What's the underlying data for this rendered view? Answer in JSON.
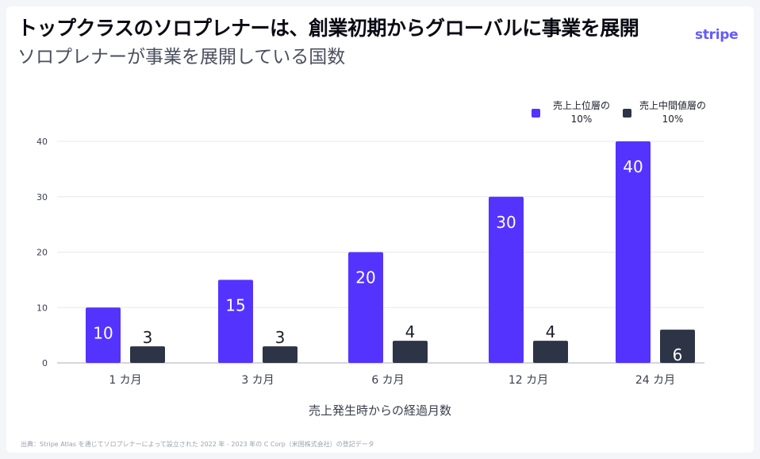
{
  "header": {
    "title": "トップクラスのソロプレナーは、創業初期からグローバルに事業を展開",
    "subtitle": "ソロプレナーが事業を展開している国数",
    "logo": "stripe"
  },
  "footer": {
    "source": "出典：Stripe Atlas を通じてソロプレナーによって設立された 2022 年 - 2023 年の C Corp（米国株式会社）の登記データ"
  },
  "colors": {
    "top10": "#5533ff",
    "mid10": "#2d3446",
    "grid": "#e6e8ee",
    "axis": "#a9aebb"
  },
  "chart_data": {
    "type": "bar",
    "title": "ソロプレナーが事業を展開している国数",
    "xlabel": "売上発生時からの経過月数",
    "ylabel": "",
    "categories": [
      "1 カ月",
      "3 カ月",
      "6 カ月",
      "12 カ月",
      "24 カ月"
    ],
    "series": [
      {
        "name": "売上上位層の 10%",
        "values": [
          10,
          15,
          20,
          30,
          40
        ]
      },
      {
        "name": "売上中間値層の 10%",
        "values": [
          3,
          3,
          4,
          4,
          6
        ]
      }
    ],
    "yticks": [
      0,
      10,
      20,
      30,
      40
    ],
    "ylim": [
      0,
      40
    ],
    "grid": true,
    "legend": "top-right"
  }
}
